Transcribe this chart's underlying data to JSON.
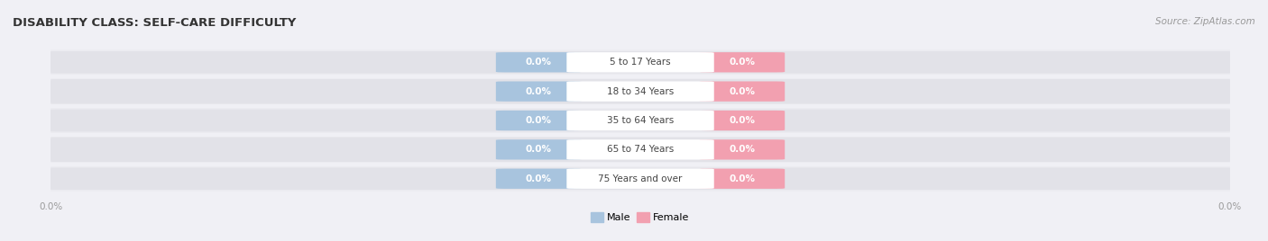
{
  "title": "DISABILITY CLASS: SELF-CARE DIFFICULTY",
  "source_text": "Source: ZipAtlas.com",
  "categories": [
    "5 to 17 Years",
    "18 to 34 Years",
    "35 to 64 Years",
    "65 to 74 Years",
    "75 Years and over"
  ],
  "male_values": [
    0.0,
    0.0,
    0.0,
    0.0,
    0.0
  ],
  "female_values": [
    0.0,
    0.0,
    0.0,
    0.0,
    0.0
  ],
  "male_color": "#a8c4de",
  "female_color": "#f2a0b0",
  "male_label": "Male",
  "female_label": "Female",
  "bar_bg_color": "#e2e2e8",
  "row_bg_even": "#ebebf0",
  "row_bg_odd": "#e2e2e8",
  "fig_bg": "#f0f0f5",
  "title_fontsize": 9.5,
  "source_fontsize": 7.5,
  "value_fontsize": 7.5,
  "cat_fontsize": 7.5,
  "legend_fontsize": 8,
  "tick_fontsize": 7.5,
  "tick_color": "#999999",
  "title_color": "#333333",
  "source_color": "#999999",
  "cat_color": "#444444",
  "value_color": "#ffffff",
  "figsize": [
    14.06,
    2.68
  ],
  "dpi": 100
}
